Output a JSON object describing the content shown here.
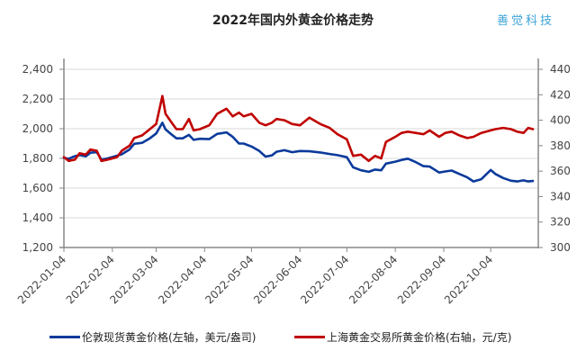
{
  "header": {
    "title": "2022年国内外黄金价格走势",
    "brand": "善觉科技"
  },
  "chart_data": {
    "type": "line",
    "title": "2022年国内外黄金价格走势",
    "xlabel": "",
    "x_tick_labels": [
      "2022-01-04",
      "2022-02-04",
      "2022-03-04",
      "2022-04-04",
      "2022-05-04",
      "2022-06-04",
      "2022-07-04",
      "2022-08-04",
      "2022-09-04",
      "2022-10-04"
    ],
    "left_axis": {
      "label": "美元/盎司",
      "ylim": [
        1200,
        2400
      ],
      "ticks": [
        "1,200",
        "1,400",
        "1,600",
        "1,800",
        "2,000",
        "2,200",
        "2,400"
      ]
    },
    "right_axis": {
      "label": "元/克",
      "ylim": [
        300,
        440
      ],
      "ticks": [
        "300",
        "320",
        "340",
        "360",
        "380",
        "400",
        "420",
        "440"
      ]
    },
    "grid": true,
    "legend_position": "bottom",
    "series": [
      {
        "name": "伦敦现货黄金价格(左轴，美元/盎司)",
        "axis": "left",
        "color": "#0b3a9b",
        "points": [
          [
            "2022-01-04",
            1805
          ],
          [
            "2022-01-07",
            1797
          ],
          [
            "2022-01-11",
            1815
          ],
          [
            "2022-01-14",
            1822
          ],
          [
            "2022-01-18",
            1814
          ],
          [
            "2022-01-21",
            1838
          ],
          [
            "2022-01-25",
            1842
          ],
          [
            "2022-01-28",
            1792
          ],
          [
            "2022-02-01",
            1800
          ],
          [
            "2022-02-07",
            1818
          ],
          [
            "2022-02-10",
            1828
          ],
          [
            "2022-02-15",
            1860
          ],
          [
            "2022-02-18",
            1898
          ],
          [
            "2022-02-23",
            1905
          ],
          [
            "2022-02-28",
            1935
          ],
          [
            "2022-03-04",
            1968
          ],
          [
            "2022-03-08",
            2040
          ],
          [
            "2022-03-10",
            1995
          ],
          [
            "2022-03-14",
            1960
          ],
          [
            "2022-03-17",
            1935
          ],
          [
            "2022-03-21",
            1935
          ],
          [
            "2022-03-25",
            1958
          ],
          [
            "2022-03-28",
            1925
          ],
          [
            "2022-04-01",
            1932
          ],
          [
            "2022-04-07",
            1930
          ],
          [
            "2022-04-12",
            1965
          ],
          [
            "2022-04-18",
            1975
          ],
          [
            "2022-04-22",
            1945
          ],
          [
            "2022-04-26",
            1900
          ],
          [
            "2022-04-29",
            1900
          ],
          [
            "2022-05-04",
            1880
          ],
          [
            "2022-05-09",
            1850
          ],
          [
            "2022-05-13",
            1812
          ],
          [
            "2022-05-17",
            1820
          ],
          [
            "2022-05-20",
            1845
          ],
          [
            "2022-05-25",
            1855
          ],
          [
            "2022-05-30",
            1842
          ],
          [
            "2022-06-04",
            1850
          ],
          [
            "2022-06-10",
            1848
          ],
          [
            "2022-06-17",
            1840
          ],
          [
            "2022-06-23",
            1830
          ],
          [
            "2022-06-28",
            1822
          ],
          [
            "2022-07-04",
            1808
          ],
          [
            "2022-07-08",
            1740
          ],
          [
            "2022-07-13",
            1720
          ],
          [
            "2022-07-18",
            1710
          ],
          [
            "2022-07-22",
            1725
          ],
          [
            "2022-07-26",
            1720
          ],
          [
            "2022-07-29",
            1765
          ],
          [
            "2022-08-04",
            1778
          ],
          [
            "2022-08-08",
            1790
          ],
          [
            "2022-08-12",
            1798
          ],
          [
            "2022-08-17",
            1775
          ],
          [
            "2022-08-22",
            1748
          ],
          [
            "2022-08-26",
            1745
          ],
          [
            "2022-09-01",
            1705
          ],
          [
            "2022-09-05",
            1712
          ],
          [
            "2022-09-09",
            1718
          ],
          [
            "2022-09-14",
            1695
          ],
          [
            "2022-09-19",
            1672
          ],
          [
            "2022-09-23",
            1645
          ],
          [
            "2022-09-28",
            1660
          ],
          [
            "2022-10-04",
            1722
          ],
          [
            "2022-10-07",
            1695
          ],
          [
            "2022-10-12",
            1668
          ],
          [
            "2022-10-17",
            1650
          ],
          [
            "2022-10-21",
            1645
          ],
          [
            "2022-10-25",
            1652
          ],
          [
            "2022-10-28",
            1645
          ],
          [
            "2022-10-31",
            1648
          ]
        ]
      },
      {
        "name": "上海黄金交易所黄金价格(右轴，元/克)",
        "axis": "right",
        "color": "#c00000",
        "points": [
          [
            "2022-01-04",
            371
          ],
          [
            "2022-01-07",
            368
          ],
          [
            "2022-01-11",
            369
          ],
          [
            "2022-01-14",
            374
          ],
          [
            "2022-01-18",
            373
          ],
          [
            "2022-01-21",
            377
          ],
          [
            "2022-01-25",
            376
          ],
          [
            "2022-01-28",
            368
          ],
          [
            "2022-02-01",
            369
          ],
          [
            "2022-02-07",
            371
          ],
          [
            "2022-02-10",
            376
          ],
          [
            "2022-02-15",
            380
          ],
          [
            "2022-02-18",
            386
          ],
          [
            "2022-02-23",
            388
          ],
          [
            "2022-02-28",
            393
          ],
          [
            "2022-03-04",
            397
          ],
          [
            "2022-03-08",
            419
          ],
          [
            "2022-03-10",
            405
          ],
          [
            "2022-03-14",
            398
          ],
          [
            "2022-03-17",
            393
          ],
          [
            "2022-03-21",
            393
          ],
          [
            "2022-03-25",
            401
          ],
          [
            "2022-03-28",
            392
          ],
          [
            "2022-04-01",
            393
          ],
          [
            "2022-04-07",
            396
          ],
          [
            "2022-04-12",
            405
          ],
          [
            "2022-04-18",
            409
          ],
          [
            "2022-04-22",
            403
          ],
          [
            "2022-04-26",
            406
          ],
          [
            "2022-04-29",
            403
          ],
          [
            "2022-05-04",
            405
          ],
          [
            "2022-05-09",
            398
          ],
          [
            "2022-05-13",
            396
          ],
          [
            "2022-05-17",
            398
          ],
          [
            "2022-05-20",
            401
          ],
          [
            "2022-05-25",
            400
          ],
          [
            "2022-05-30",
            397
          ],
          [
            "2022-06-04",
            396
          ],
          [
            "2022-06-10",
            402
          ],
          [
            "2022-06-17",
            397
          ],
          [
            "2022-06-23",
            394
          ],
          [
            "2022-06-28",
            389
          ],
          [
            "2022-07-04",
            385
          ],
          [
            "2022-07-08",
            372
          ],
          [
            "2022-07-13",
            373
          ],
          [
            "2022-07-18",
            368
          ],
          [
            "2022-07-22",
            372
          ],
          [
            "2022-07-26",
            370
          ],
          [
            "2022-07-29",
            383
          ],
          [
            "2022-08-04",
            387
          ],
          [
            "2022-08-08",
            390
          ],
          [
            "2022-08-12",
            391
          ],
          [
            "2022-08-17",
            390
          ],
          [
            "2022-08-22",
            389
          ],
          [
            "2022-08-26",
            392
          ],
          [
            "2022-09-01",
            387
          ],
          [
            "2022-09-05",
            390
          ],
          [
            "2022-09-09",
            391
          ],
          [
            "2022-09-14",
            388
          ],
          [
            "2022-09-19",
            386
          ],
          [
            "2022-09-23",
            387
          ],
          [
            "2022-09-28",
            390
          ],
          [
            "2022-10-04",
            392
          ],
          [
            "2022-10-07",
            393
          ],
          [
            "2022-10-12",
            394
          ],
          [
            "2022-10-17",
            393
          ],
          [
            "2022-10-21",
            391
          ],
          [
            "2022-10-25",
            390
          ],
          [
            "2022-10-28",
            394
          ],
          [
            "2022-10-31",
            393
          ]
        ]
      }
    ]
  },
  "legend": {
    "items": [
      {
        "label": "伦敦现货黄金价格(左轴，美元/盎司)",
        "color": "#0b3a9b"
      },
      {
        "label": "上海黄金交易所黄金价格(右轴，元/克)",
        "color": "#c00000"
      }
    ]
  }
}
